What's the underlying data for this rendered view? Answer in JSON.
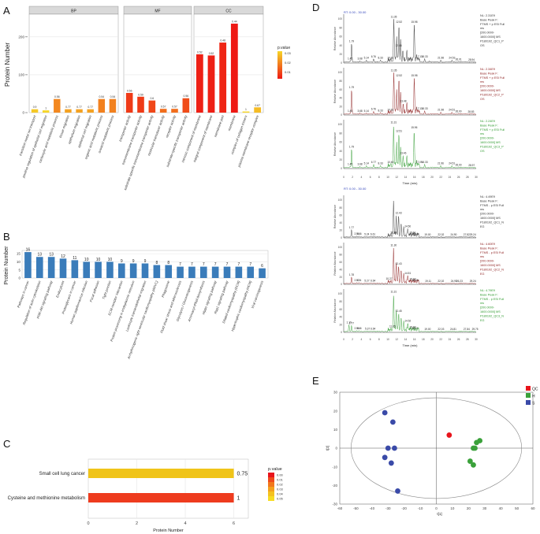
{
  "panel_labels": {
    "a": "A",
    "b": "B",
    "c": "C",
    "d": "D",
    "e": "E"
  },
  "chart_data": [
    {
      "id": "A",
      "type": "bar",
      "ylabel": "Protein Number",
      "yticks": [
        0,
        100,
        200
      ],
      "ylim": [
        0,
        260
      ],
      "facets": [
        {
          "name": "BP",
          "categories": [
            "transition metal ion transport",
            "positive regulation of epithelial cell migration",
            "carboxylic acid metabolic process",
            "tissue migration",
            "epithelium migration",
            "epithelial cell migration",
            "organic acid metabolic process",
            "oxoacid metabolic process"
          ],
          "values": [
            9,
            6,
            36,
            9,
            9,
            9,
            36,
            36
          ],
          "labels": [
            "0.9",
            "1",
            "0.56",
            "0.77",
            "0.77",
            "0.77",
            "0.54",
            "0.54"
          ],
          "pvalues": [
            0.028,
            0.03,
            0.018,
            0.022,
            0.022,
            0.022,
            0.017,
            0.017
          ]
        },
        {
          "name": "MF",
          "categories": [
            "transporter activity",
            "transmembrane transporter activity",
            "substrate-specific transmembrane transporter activity",
            "molecular transducer activity",
            "receptor activity",
            "substrate-specific transporter activity"
          ],
          "values": [
            52,
            42,
            32,
            10,
            10,
            38
          ],
          "labels": [
            "0.56",
            "0.59",
            "0.6",
            "0.57",
            "0.57",
            "0.56"
          ],
          "pvalues": [
            0.006,
            0.006,
            0.008,
            0.014,
            0.014,
            0.009
          ]
        },
        {
          "name": "CC",
          "categories": [
            "intrinsic component of membrane",
            "integral component of membrane",
            "membrane part",
            "membrane",
            "complex of collagen trimers",
            "plasma membrane receptor complex"
          ],
          "values": [
            154,
            151,
            185,
            235,
            3,
            14
          ],
          "labels": [
            "0.52",
            "0.52",
            "0.48",
            "0.44",
            "1",
            "0.67"
          ],
          "pvalues": [
            0.002,
            0.002,
            0.003,
            0.001,
            0.03,
            0.026
          ]
        }
      ],
      "legend": {
        "title": "p.value",
        "ticks": [
          "0.03",
          "0.02",
          "0.01"
        ]
      }
    },
    {
      "id": "B",
      "type": "bar",
      "ylabel": "Protein Number",
      "yticks": [
        0,
        5,
        10,
        15
      ],
      "ylim": [
        0,
        17
      ],
      "categories": [
        "Pathways in cancer",
        "Regulation of actin cytoskeleton",
        "PI3K-Akt signaling pathway",
        "Endocytosis",
        "Proteoglycans in cancer",
        "Human papillomavirus infection",
        "Focal adhesion",
        "Tight junction",
        "ECM-receptor interaction",
        "Protein processing in endoplasmic reticulum",
        "Leukocyte transendothelial migration",
        "Arrhythmogenic right ventricular cardiomyopathy (ARVC)",
        "Phagosome",
        "Fluid shear stress and atherosclerosis",
        "Glycolysis / Gluconeogenesis",
        "Aminoacyl-tRNA biosynthesis",
        "Hippo signaling pathway",
        "Rap1 signaling pathway",
        "Dilated cardiomyopathy (DCM)",
        "Hypertrophic cardiomyopathy (HCM)",
        "Viral carcinogenesis"
      ],
      "values": [
        16,
        13,
        13,
        12,
        11,
        10,
        10,
        10,
        9,
        9,
        9,
        8,
        8,
        7,
        7,
        7,
        7,
        7,
        7,
        7,
        6
      ],
      "color": "#3a7cba"
    },
    {
      "id": "C",
      "type": "bar",
      "orientation": "horizontal",
      "xlabel": "Protein Number",
      "xticks": [
        0,
        2,
        4,
        6
      ],
      "xlim": [
        0,
        6.6
      ],
      "categories": [
        "Small cell lung cancer",
        "Cysteine and methionine metabolism"
      ],
      "values": [
        6,
        6
      ],
      "labels": [
        "0.75",
        "1"
      ],
      "colors": [
        "#f0c419",
        "#ee3b1e"
      ],
      "legend": {
        "title": "p.value",
        "ticks": [
          "0.00",
          "0.01",
          "0.02",
          "0.03",
          "0.04",
          "0.05"
        ],
        "colors": [
          "#e8141c",
          "#ef4a1c",
          "#f2781c",
          "#f4a11d",
          "#f5c21f",
          "#f7dc23"
        ]
      }
    },
    {
      "id": "D",
      "type": "line",
      "xlabel": "Time (min)",
      "ylabel": "Relative Abundance",
      "xticks": [
        0,
        2,
        4,
        6,
        8,
        10,
        12,
        14,
        16,
        18,
        20,
        22,
        24,
        26,
        28,
        30
      ],
      "yticks": [
        0,
        20,
        40,
        60,
        80,
        100
      ],
      "top_header": "RT: 0.00 - 30.00",
      "bottom_header": "RT: 0.00 - 30.00",
      "traces": [
        {
          "color": "#333333",
          "info": [
            "NL: 2.31E9",
            "Base Peak F:",
            "FTMS + p ESI Full",
            "ms",
            "[200.0000-",
            "1600.0000] MS",
            "P180192_QC1_P",
            "OS"
          ],
          "peaks": [
            "11.35",
            "12.52",
            "15.98",
            "12.44",
            "1.79",
            "1.45",
            "3.68",
            "5.14",
            "6.76",
            "8.33",
            "10.61",
            "17.13",
            "18.33",
            "21.98",
            "24.53",
            "26.01",
            "28.94"
          ]
        },
        {
          "color": "#8b1a1a",
          "info": [
            "NL: 2.34E9",
            "Base Peak F:",
            "FTMS + p ESI Full",
            "ms",
            "[200.0000-",
            "1600.0000] MS",
            "P180192_QC2_P",
            "OS"
          ],
          "peaks": [
            "11.35",
            "12.52",
            "15.98",
            "13.48",
            "1.79",
            "1.45",
            "3.68",
            "5.14",
            "6.76",
            "8.33",
            "10.61",
            "17.13",
            "18.33",
            "21.98",
            "24.51",
            "26.00",
            "28.83"
          ]
        },
        {
          "color": "#2e9a2e",
          "info": [
            "NL: 2.24E9",
            "Base Peak F:",
            "FTMS + p ESI Full",
            "ms",
            "[200.0000-",
            "1600.0000] MS",
            "P180192_QC3_P",
            "OS"
          ],
          "peaks": [
            "11.31",
            "12.51",
            "15.96",
            "13.46",
            "1.79",
            "1.45",
            "3.68",
            "5.14",
            "6.77",
            "8.33",
            "10.60",
            "17.09",
            "18.33",
            "21.96",
            "24.51",
            "26.00",
            "28.97"
          ]
        },
        {
          "color": "#333333",
          "info": [
            "NL: 4.49E9",
            "Base Peak F:",
            "FTMS - p ESI Full",
            "ms",
            "[200.0000-",
            "1600.0000] MS",
            "P180192_QC1_N",
            "EG"
          ],
          "peaks": [
            "11.30",
            "12.43",
            "14.50",
            "1.77",
            "2.96",
            "3.46",
            "5.24",
            "6.61",
            "11.29",
            "15.61",
            "16.16",
            "19.00",
            "22.02",
            "24.90",
            "27.82",
            "29.24"
          ]
        },
        {
          "color": "#8b1a1a",
          "info": [
            "NL: 4.60E9",
            "Base Peak F:",
            "FTMS - p ESI Full",
            "ms",
            "[200.0000-",
            "1600.0000] MS",
            "P180192_QC2_N",
            "EG"
          ],
          "peaks": [
            "11.30",
            "12.43",
            "14.51",
            "1.78",
            "2.97",
            "3.44",
            "5.27",
            "6.64",
            "10.27",
            "15.63",
            "16.19",
            "19.11",
            "22.02",
            "24.95",
            "26.23",
            "29.24"
          ]
        },
        {
          "color": "#2e9a2e",
          "info": [
            "NL: 4.79E9",
            "Base Peak F:",
            "FTMS - p ESI Full",
            "ms",
            "[200.0000-",
            "1600.0000] MS",
            "P180192_QC3_N",
            "EG"
          ],
          "peaks": [
            "11.31",
            "12.45",
            "14.52",
            "1.19",
            "1.77",
            "2.96",
            "3.46",
            "5.37",
            "6.64",
            "11.05",
            "15.63",
            "16.17",
            "19.00",
            "22.03",
            "24.81",
            "27.84",
            "29.75"
          ]
        }
      ]
    },
    {
      "id": "E",
      "type": "scatter",
      "xlabel": "t[1]",
      "ylabel": "t[2]",
      "xticks": [
        -60,
        -50,
        -40,
        -30,
        -20,
        -10,
        0,
        10,
        20,
        30,
        40,
        50,
        60
      ],
      "yticks": [
        -30,
        -20,
        -10,
        0,
        10,
        20,
        30
      ],
      "xlim": [
        -60,
        60
      ],
      "ylim": [
        -30,
        30
      ],
      "series": [
        {
          "name": "QC",
          "color": "#e8141c",
          "points": [
            [
              8,
              7
            ]
          ]
        },
        {
          "name": "H",
          "color": "#3aa13a",
          "points": [
            [
              25,
              3
            ],
            [
              27,
              4
            ],
            [
              23,
              0
            ],
            [
              24,
              0
            ],
            [
              21,
              -7
            ],
            [
              23,
              -9
            ]
          ]
        },
        {
          "name": "S",
          "color": "#3a4aa8",
          "points": [
            [
              -32,
              19
            ],
            [
              -27,
              14
            ],
            [
              -30,
              0
            ],
            [
              -26,
              0
            ],
            [
              -32,
              -5
            ],
            [
              -28,
              -8
            ],
            [
              -24,
              -23
            ]
          ]
        }
      ]
    }
  ]
}
